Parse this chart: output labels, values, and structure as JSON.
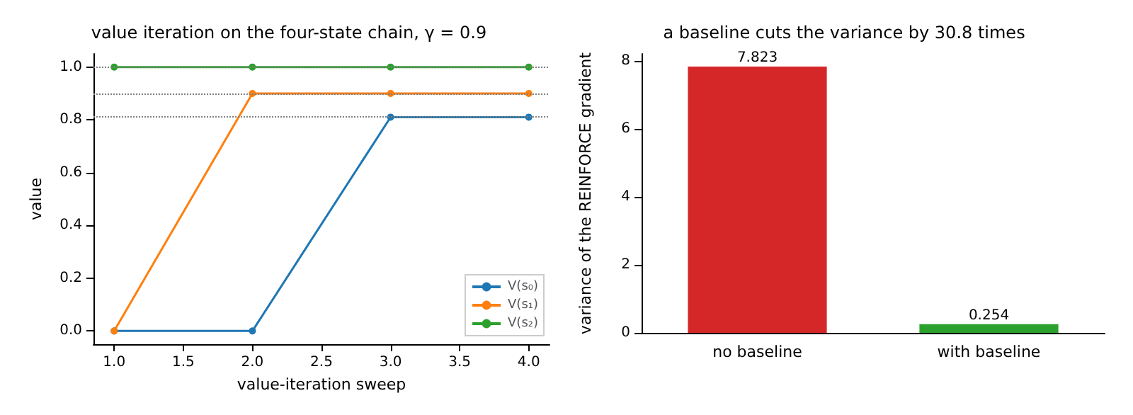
{
  "chart_data": [
    {
      "type": "line",
      "title": "value iteration on the four-state chain, γ = 0.9",
      "xlabel": "value-iteration sweep",
      "ylabel": "value",
      "x": [
        1,
        2,
        3,
        4
      ],
      "series": [
        {
          "name": "V(s₀)",
          "color": "#1f77b4",
          "values": [
            0,
            0,
            0.81,
            0.81
          ]
        },
        {
          "name": "V(s₁)",
          "color": "#ff7f0e",
          "values": [
            0,
            0.9,
            0.9,
            0.9
          ]
        },
        {
          "name": "V(s₂)",
          "color": "#2ca02c",
          "values": [
            1,
            1,
            1,
            1
          ]
        }
      ],
      "xlim": [
        0.85,
        4.15
      ],
      "ylim": [
        -0.05,
        1.05
      ],
      "xticks": [
        {
          "value": 1,
          "label": "1.0"
        },
        {
          "value": 1.5,
          "label": "1.5"
        },
        {
          "value": 2,
          "label": "2.0"
        },
        {
          "value": 2.5,
          "label": "2.5"
        },
        {
          "value": 3,
          "label": "3.0"
        },
        {
          "value": 3.5,
          "label": "3.5"
        },
        {
          "value": 4,
          "label": "4.0"
        }
      ],
      "yticks": [
        {
          "value": 0,
          "label": "0.0"
        },
        {
          "value": 0.2,
          "label": "0.2"
        },
        {
          "value": 0.4,
          "label": "0.4"
        },
        {
          "value": 0.6,
          "label": "0.6"
        },
        {
          "value": 0.8,
          "label": "0.8"
        },
        {
          "value": 1,
          "label": "1.0"
        }
      ],
      "ref_lines": [
        {
          "axis": "y",
          "value": 1,
          "color": "#808080",
          "line_style": "dotted"
        },
        {
          "axis": "y",
          "value": 0.9,
          "color": "#808080",
          "line_style": "dotted"
        },
        {
          "axis": "y",
          "value": 0.81,
          "color": "#808080",
          "line_style": "dotted"
        }
      ],
      "marker": "circle",
      "legend": "bottom right",
      "grid": false
    },
    {
      "type": "bar",
      "title": "a baseline cuts the variance by 30.8 times",
      "ylabel": "variance of the REINFORCE gradient",
      "categories": [
        "no baseline",
        "with baseline"
      ],
      "values": [
        7.823,
        0.254
      ],
      "colors": [
        "#d62728",
        "#2ca02c"
      ],
      "ylim": [
        0,
        8.2
      ],
      "yticks": [
        0,
        2,
        4,
        6,
        8
      ],
      "data_labels": true,
      "grid": false
    }
  ]
}
